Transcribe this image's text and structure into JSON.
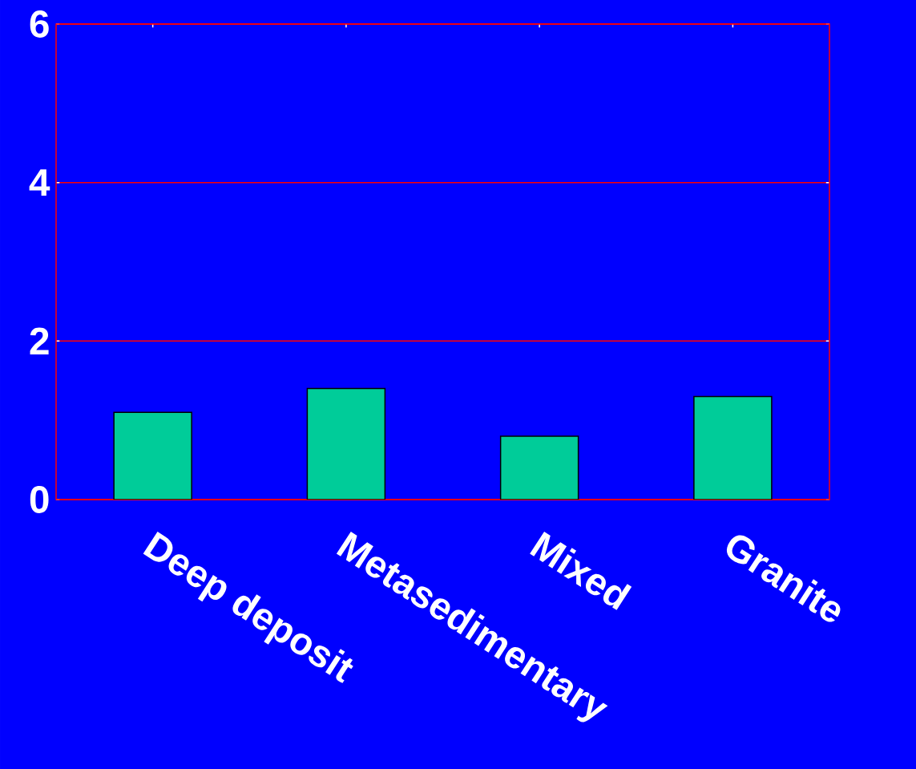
{
  "chart_data": {
    "type": "bar",
    "categories": [
      "Deep deposit",
      "Metasedimentary",
      "Mixed",
      "Granite"
    ],
    "values": [
      1.1,
      1.4,
      0.8,
      1.3
    ],
    "color": "#00cc99",
    "ylim": [
      0,
      6
    ],
    "yticks": [
      0,
      2,
      4,
      6
    ],
    "grid": "y"
  }
}
